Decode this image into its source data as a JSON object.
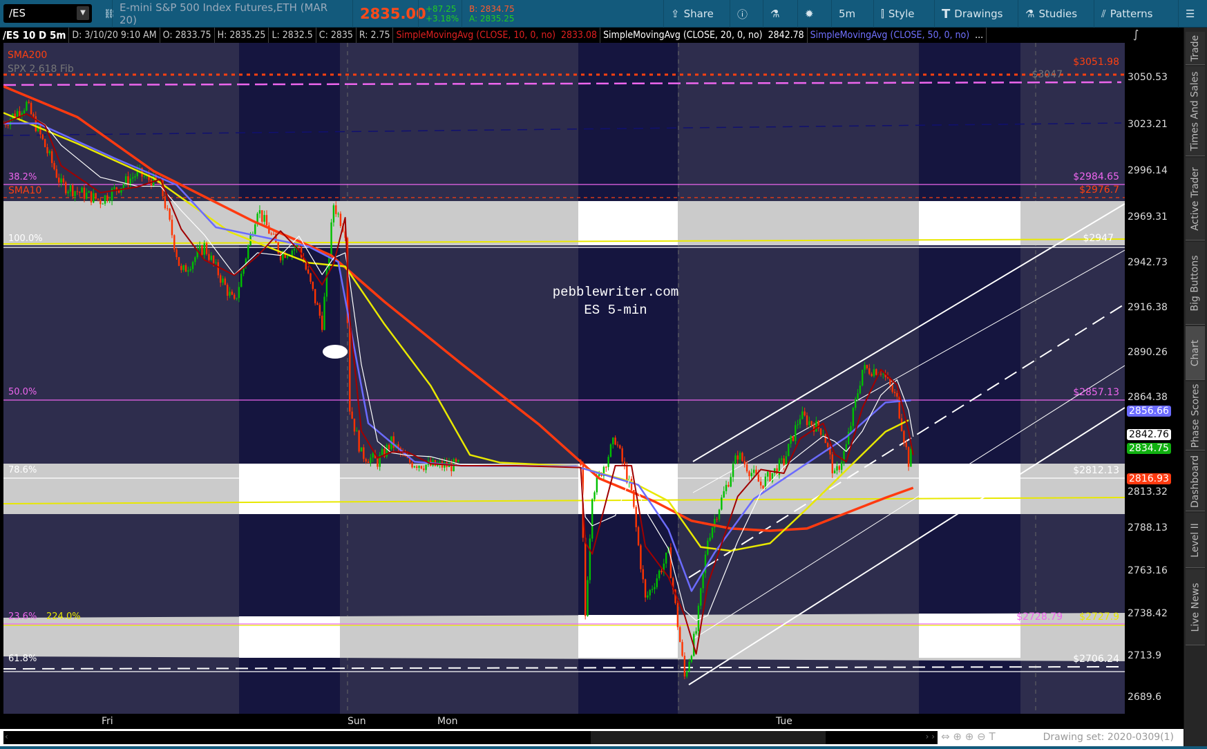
{
  "toolbar": {
    "symbol": "/ES",
    "description": "E-mini S&P 500 Index Futures,ETH (MAR 20)",
    "last": "2835.00",
    "change": "+87.25",
    "change_pct": "+3.18%",
    "bid": "B: 2834.75",
    "ask": "A: 2835.25",
    "buttons": [
      {
        "label": "Share",
        "icon": "share-icon"
      },
      {
        "label": "",
        "icon": "info-icon"
      },
      {
        "label": "",
        "icon": "flask-icon"
      },
      {
        "label": "",
        "icon": "gear-icon"
      },
      {
        "label": "5m",
        "icon": ""
      },
      {
        "label": "Style",
        "icon": "candle-icon"
      },
      {
        "label": "Drawings",
        "icon": "text-T-icon"
      },
      {
        "label": "Studies",
        "icon": "flask-icon"
      },
      {
        "label": "Patterns",
        "icon": "patterns-icon"
      },
      {
        "label": "",
        "icon": "menu-icon"
      }
    ]
  },
  "info": {
    "title": "/ES 10 D 5m",
    "date": "D: 3/10/20 9:10 AM",
    "open": "O: 2833.75",
    "high": "H: 2835.25",
    "low": "L: 2832.5",
    "close": "C: 2835",
    "range": "R: 2.75",
    "sma10": "SimpleMovingAvg (CLOSE, 10, 0, no)",
    "sma10_val": "2833.08",
    "sma20": "SimpleMovingAvg (CLOSE, 20, 0, no)",
    "sma20_val": "2842.78",
    "sma50": "SimpleMovingAvg (CLOSE, 50, 0, no)",
    "more": "..."
  },
  "watermark": {
    "line1": "pebblewriter.com",
    "line2": "ES 5-min"
  },
  "left_labels": {
    "sma200": "SMA200",
    "spx_fib": "SPX 2.618 Fib",
    "f382": "38.2%",
    "sma10": "SMA10",
    "f100": "100.0%",
    "f500": "50.0%",
    "f786": "78.6%",
    "f236": "23.6%",
    "f2240": "224.0%",
    "f618": "61.8%"
  },
  "right_labels": {
    "r1": "$3051.98",
    "r2": "$3047",
    "r3": "$2984.65",
    "r4": "$2976.7",
    "r5": "$2947",
    "r6": "$2857.13",
    "r7": "$2812.13",
    "r8": "$2728.79",
    "r9": "$2727.9",
    "r10": "$2706.24"
  },
  "axis": {
    "ticks": [
      "3050.53",
      "3023.21",
      "2996.14",
      "2969.31",
      "2942.73",
      "2916.38",
      "2890.26",
      "2864.38",
      "2813.32",
      "2788.13",
      "2763.16",
      "2738.42",
      "2713.9",
      "2689.6"
    ],
    "badges": {
      "sma50": "2856.66",
      "sma20": "2842.76",
      "last": "2834.75",
      "sma200": "2816.93"
    }
  },
  "dates": [
    "Fri",
    "Sun",
    "Mon",
    "Tue"
  ],
  "footer": {
    "drawing_set": "Drawing set: 2020-0309(1)"
  },
  "sidebar": [
    "Trade",
    "Times And Sales",
    "Active Trader",
    "Big Buttons",
    "Chart",
    "Phase Scores",
    "Dashboard",
    "Level II",
    "Live News"
  ],
  "colors": {
    "up": "#00c000",
    "down": "#ff3300",
    "sma10": "#a00000",
    "sma20": "#ffffff",
    "sma50": "#6b6bff",
    "sma200": "#ff3a10",
    "yellow_ma": "#e8e800",
    "fib": "#ee66ee"
  },
  "chart_data": {
    "type": "candlestick",
    "ylim": [
      2689.6,
      3050.53
    ],
    "price": {
      "x": [
        0,
        10,
        18,
        25,
        42,
        58,
        68,
        77,
        87,
        100,
        110,
        120,
        128,
        138,
        143,
        148,
        150,
        155,
        162,
        168,
        175,
        185,
        198,
        222,
        250,
        252,
        255,
        265,
        272,
        278,
        288,
        295,
        300,
        305,
        318,
        328,
        338,
        345,
        355,
        360,
        365,
        372,
        380,
        387,
        392,
        394
      ],
      "y": [
        3024.1,
        3035.3,
        3010.7,
        2988.3,
        2979.3,
        2995.0,
        2988.3,
        2936.8,
        2952.5,
        2918.9,
        2974.9,
        2948.0,
        2952.5,
        2907.7,
        2977.1,
        2961.4,
        2858.4,
        2831.5,
        2827.1,
        2838.3,
        2827.1,
        2824.8,
        2824.8,
        2824.8,
        2822.6,
        2737.5,
        2809.2,
        2840.5,
        2809.2,
        2746.5,
        2773.4,
        2701.7,
        2728.6,
        2782.3,
        2831.5,
        2813.6,
        2827.1,
        2853.9,
        2845.0,
        2818.1,
        2836.0,
        2880.8,
        2880.8,
        2862.9,
        2827.1,
        2835.0
      ]
    },
    "sma200": {
      "x": [
        0,
        32,
        65,
        108,
        142,
        165,
        198,
        232,
        258,
        282,
        298,
        315,
        332,
        348,
        365,
        382,
        394
      ],
      "y": [
        3045.7,
        3027.8,
        2996.4,
        2967.3,
        2947.2,
        2920.3,
        2884.5,
        2848.7,
        2817.4,
        2803.9,
        2792.7,
        2788.2,
        2786.9,
        2788.2,
        2797.2,
        2806.1,
        2811.9
      ]
    },
    "yellow_ma": {
      "x": [
        0,
        32,
        65,
        98,
        132,
        148,
        165,
        185,
        202,
        215,
        248,
        272,
        288,
        302,
        315,
        332,
        348,
        365,
        382,
        392
      ],
      "y": [
        3030.3,
        3012.4,
        2992.3,
        2960.9,
        2943.0,
        2940.8,
        2907.2,
        2871.4,
        2831.1,
        2826.6,
        2824.4,
        2815.4,
        2804.2,
        2777.4,
        2775.2,
        2779.6,
        2799.8,
        2822.2,
        2844.6,
        2851.3
      ]
    },
    "sma50": {
      "x": [
        0,
        15,
        48,
        75,
        92,
        132,
        145,
        158,
        178,
        198,
        248,
        275,
        288,
        298,
        308,
        325,
        345,
        365,
        382,
        393
      ],
      "y": [
        3024.1,
        3024.1,
        3003.9,
        2988.3,
        2963.6,
        2952.5,
        2943.5,
        2849.5,
        2827.1,
        2824.8,
        2824.4,
        2813.6,
        2787.6,
        2751.8,
        2774.2,
        2805.5,
        2823.5,
        2841.4,
        2861.6,
        2862.9
      ]
    }
  }
}
